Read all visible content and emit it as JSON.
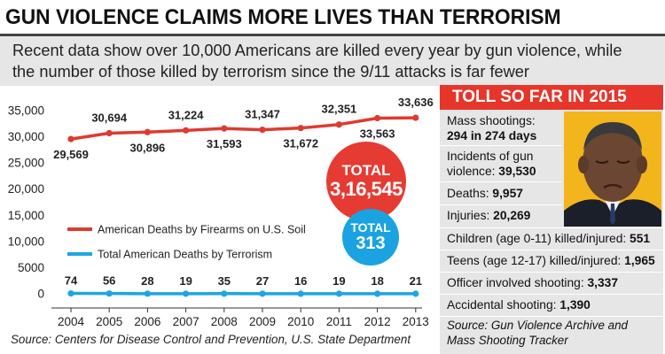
{
  "headline": "GUN VIOLENCE CLAIMS MORE LIVES THAN TERRORISM",
  "subhead": {
    "line1": "Recent data show over 10,000 Americans are killed every year by gun violence, while",
    "line2": "the number of those killed by terrorism since the 9/11 attacks is far fewer"
  },
  "chart_data": {
    "type": "line",
    "x": [
      "2004",
      "2005",
      "2006",
      "2007",
      "2008",
      "2009",
      "2010",
      "2011",
      "2012",
      "2013"
    ],
    "yticks": [
      "35,000",
      "30,000",
      "25,000",
      "20,000",
      "15,000",
      "10,000",
      "5000",
      "0"
    ],
    "ylim": [
      0,
      35000
    ],
    "grid": false,
    "series": [
      {
        "name": "American Deaths by Firearms on U.S. Soil",
        "color": "#e03a2f",
        "values": [
          29569,
          30694,
          30896,
          31224,
          31593,
          31347,
          31672,
          32351,
          33563,
          33636
        ],
        "labels": [
          "29,569",
          "30,694",
          "30,896",
          "31,224",
          "31,593",
          "31,347",
          "31,672",
          "32,351",
          "33,563",
          "33,636"
        ]
      },
      {
        "name": "Total American Deaths by Terrorism",
        "color": "#1ca6e3",
        "values": [
          74,
          56,
          28,
          19,
          35,
          27,
          16,
          19,
          18,
          21
        ],
        "labels": [
          "74",
          "56",
          "28",
          "19",
          "35",
          "27",
          "16",
          "19",
          "18",
          "21"
        ]
      }
    ],
    "legend_position": "center-left"
  },
  "totals": {
    "firearms_label": "TOTAL",
    "firearms_value": "3,16,545",
    "firearms_color": "#e63b32",
    "terror_label": "TOTAL",
    "terror_value": "313",
    "terror_color": "#1aa3e0"
  },
  "source": "Source: Centers for Disease Control and Prevention, U.S. State Department",
  "panel": {
    "title": "TOLL SO FAR IN 2015",
    "title_color": "#e6352b",
    "mass_label": "Mass shootings:",
    "mass_value": "294 in 274 days",
    "gun_label_1": "Incidents of gun",
    "gun_label_2": "violence: ",
    "gun_value": "39,530",
    "deaths_label": "Deaths: ",
    "deaths_value": "9,957",
    "injuries_label": "Injuries: ",
    "injuries_value": "20,269",
    "children_label": "Children (age 0-11) killed/injured: ",
    "children_value": "551",
    "teens_label": "Teens (age 12-17) killed/injured: ",
    "teens_value": "1,965",
    "officer_label": "Officer involved shooting: ",
    "officer_value": "3,337",
    "accidental_label": "Accidental shooting: ",
    "accidental_value": "1,390",
    "source_1": "Source: Gun Violence Archive and",
    "source_2": "Mass Shooting Tracker"
  }
}
